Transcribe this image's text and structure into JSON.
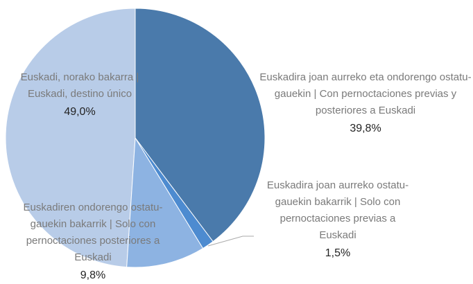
{
  "chart_data": {
    "type": "pie",
    "categories": [
      "Euskadira joan aurreko eta ondorengo ostatu-gauekin | Con pernoctaciones previas y posteriores a Euskadi",
      "Euskadira joan aurreko ostatu-gauekin bakarrik | Solo con pernoctaciones previas a Euskadi",
      "Euskadiren ondorengo ostatu-gauekin bakarrik | Solo con pernoctaciones posteriores a Euskadi",
      "Euskadi, norako bakarra | Euskadi, destino único"
    ],
    "values": [
      39.8,
      1.5,
      9.8,
      49.0
    ],
    "value_labels": [
      "39,8%",
      "1,5%",
      "9,8%",
      "49,0%"
    ],
    "colors": [
      "#4a7aab",
      "#4d8bd0",
      "#8db3e2",
      "#b8cce8"
    ]
  }
}
